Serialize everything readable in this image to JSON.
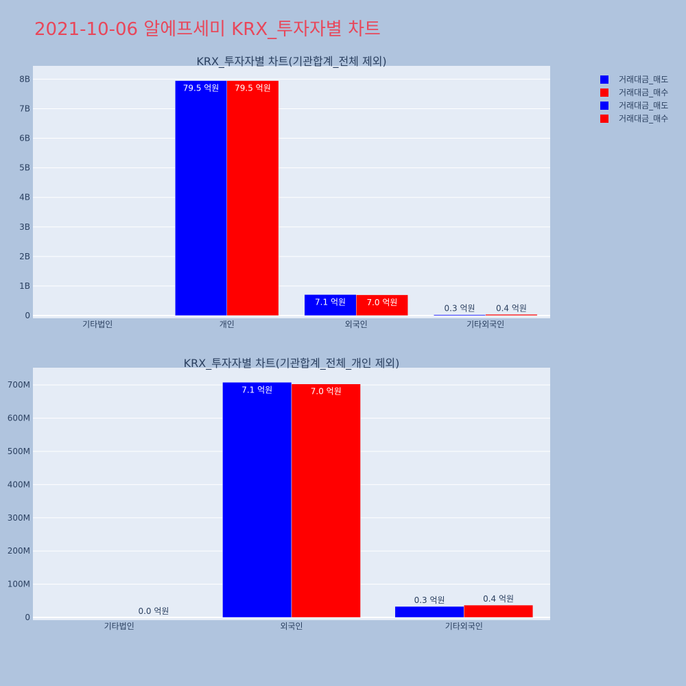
{
  "title": "2021-10-06 알에프세미 KRX_투자자별 차트",
  "colors": {
    "sell": "#0000ff",
    "buy": "#ff0000"
  },
  "legend": [
    {
      "label": "거래대금_매도",
      "color": "#0000ff"
    },
    {
      "label": "거래대금_매수",
      "color": "#ff0000"
    },
    {
      "label": "거래대금_매도",
      "color": "#0000ff"
    },
    {
      "label": "거래대금_매수",
      "color": "#ff0000"
    }
  ],
  "chart_data": [
    {
      "type": "bar",
      "title": "KRX_투자자별 차트(기관합계_전체 제외)",
      "categories": [
        "기타법인",
        "개인",
        "외국인",
        "기타외국인"
      ],
      "series": [
        {
          "name": "거래대금_매도",
          "color": "#0000ff",
          "values": [
            0,
            7950000000,
            710000000,
            30000000
          ],
          "labels": [
            "",
            "79.5 억원",
            "7.1 억원",
            "0.3 억원"
          ]
        },
        {
          "name": "거래대금_매수",
          "color": "#ff0000",
          "values": [
            0,
            7950000000,
            700000000,
            40000000
          ],
          "labels": [
            "",
            "79.5 억원",
            "7.0 억원",
            "0.4 억원"
          ]
        }
      ],
      "ylim": [
        0,
        8450000000
      ],
      "yticks": [
        0,
        1000000000,
        2000000000,
        3000000000,
        4000000000,
        5000000000,
        6000000000,
        7000000000,
        8000000000
      ],
      "ytick_labels": [
        "0",
        "1B",
        "2B",
        "3B",
        "4B",
        "5B",
        "6B",
        "7B",
        "8B"
      ],
      "grid": true
    },
    {
      "type": "bar",
      "title": "KRX_투자자별 차트(기관합계_전체_개인 제외)",
      "categories": [
        "기타법인",
        "외국인",
        "기타외국인"
      ],
      "series": [
        {
          "name": "거래대금_매도",
          "color": "#0000ff",
          "values": [
            0,
            708000000,
            33000000
          ],
          "labels": [
            "",
            "7.1 억원",
            "0.3 억원"
          ]
        },
        {
          "name": "거래대금_매수",
          "color": "#ff0000",
          "values": [
            0,
            703000000,
            37000000
          ],
          "labels": [
            "0.0 억원",
            "7.0 억원",
            "0.4 억원"
          ]
        }
      ],
      "ylim": [
        0,
        752000000
      ],
      "yticks": [
        0,
        100000000,
        200000000,
        300000000,
        400000000,
        500000000,
        600000000,
        700000000
      ],
      "ytick_labels": [
        "0",
        "100M",
        "200M",
        "300M",
        "400M",
        "500M",
        "600M",
        "700M"
      ],
      "grid": true
    }
  ]
}
